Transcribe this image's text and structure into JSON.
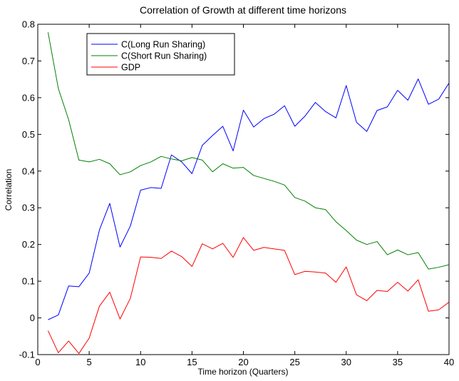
{
  "chart_data": {
    "type": "line",
    "title": "Correlation of Growth at different time horizons",
    "xlabel": "Time horizon (Quarters)",
    "ylabel": "Correlation",
    "xlim": [
      0,
      40
    ],
    "ylim": [
      -0.1,
      0.8
    ],
    "xticks": [
      0,
      5,
      10,
      15,
      20,
      25,
      30,
      35,
      40
    ],
    "yticks": [
      -0.1,
      0,
      0.1,
      0.2,
      0.3,
      0.4,
      0.5,
      0.6,
      0.7,
      0.8
    ],
    "xtick_labels": [
      "0",
      "5",
      "10",
      "15",
      "20",
      "25",
      "30",
      "35",
      "40"
    ],
    "ytick_labels": [
      "-0.1",
      "0",
      "0.1",
      "0.2",
      "0.3",
      "0.4",
      "0.5",
      "0.6",
      "0.7",
      "0.8"
    ],
    "grid": false,
    "legend_position": "top-left",
    "x": [
      1,
      2,
      3,
      4,
      5,
      6,
      7,
      8,
      9,
      10,
      11,
      12,
      13,
      14,
      15,
      16,
      17,
      18,
      19,
      20,
      21,
      22,
      23,
      24,
      25,
      26,
      27,
      28,
      29,
      30,
      31,
      32,
      33,
      34,
      35,
      36,
      37,
      38,
      39,
      40
    ],
    "series": [
      {
        "name": "C(Long Run Sharing)",
        "color": "#0000ff",
        "values": [
          -0.005,
          0.008,
          0.087,
          0.085,
          0.122,
          0.24,
          0.312,
          0.193,
          0.25,
          0.348,
          0.355,
          0.353,
          0.444,
          0.425,
          0.393,
          0.47,
          0.497,
          0.522,
          0.455,
          0.566,
          0.52,
          0.543,
          0.555,
          0.578,
          0.522,
          0.55,
          0.587,
          0.562,
          0.545,
          0.633,
          0.533,
          0.508,
          0.565,
          0.575,
          0.62,
          0.593,
          0.651,
          0.582,
          0.596,
          0.64
        ]
      },
      {
        "name": "C(Short Run Sharing)",
        "color": "#008000",
        "values": [
          0.778,
          0.625,
          0.54,
          0.43,
          0.425,
          0.432,
          0.42,
          0.39,
          0.398,
          0.415,
          0.425,
          0.44,
          0.433,
          0.428,
          0.437,
          0.43,
          0.398,
          0.42,
          0.408,
          0.41,
          0.388,
          0.38,
          0.372,
          0.362,
          0.328,
          0.318,
          0.3,
          0.295,
          0.262,
          0.238,
          0.212,
          0.2,
          0.208,
          0.172,
          0.185,
          0.172,
          0.178,
          0.133,
          0.138,
          0.145
        ]
      },
      {
        "name": "GDP",
        "color": "#ff0000",
        "values": [
          -0.035,
          -0.095,
          -0.063,
          -0.097,
          -0.055,
          0.032,
          0.07,
          -0.003,
          0.053,
          0.166,
          0.165,
          0.162,
          0.182,
          0.167,
          0.14,
          0.202,
          0.188,
          0.203,
          0.165,
          0.219,
          0.184,
          0.192,
          0.188,
          0.184,
          0.118,
          0.127,
          0.125,
          0.122,
          0.097,
          0.139,
          0.063,
          0.047,
          0.075,
          0.072,
          0.097,
          0.073,
          0.104,
          0.018,
          0.022,
          0.043
        ]
      }
    ]
  }
}
